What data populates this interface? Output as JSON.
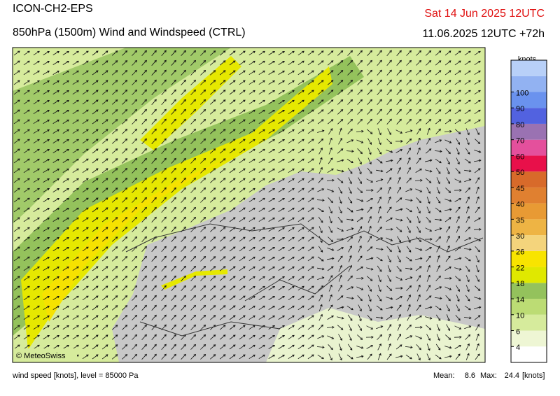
{
  "header": {
    "model": "ICON-CH2-EPS",
    "title": "850hPa (1500m) Wind and Windspeed (CTRL)",
    "valid": "Sat 14 Jun 2025 12UTC",
    "run": "11.06.2025 12UTC +72h"
  },
  "colorbar": {
    "unit": "knots",
    "ticks": [
      4,
      6,
      10,
      14,
      18,
      22,
      26,
      30,
      35,
      40,
      45,
      50,
      60,
      70,
      80,
      90,
      100
    ],
    "colors": [
      "#ffffff",
      "#eef6d4",
      "#d6eb9c",
      "#bcdc74",
      "#94c25c",
      "#e0e800",
      "#f8e400",
      "#f4d47c",
      "#eeb444",
      "#e89a34",
      "#e08030",
      "#d86a2a",
      "#e8104a",
      "#e4509c",
      "#9a72b2",
      "#5262e0",
      "#6a92ee",
      "#92b2f2",
      "#b8d0f8"
    ]
  },
  "copyright": "© MeteoSwiss",
  "footer": {
    "caption": "wind speed [knots], level = 85000 Pa",
    "mean_label": "Mean:",
    "mean": 8.6,
    "max_label": "Max:",
    "max": 24.4,
    "unit": "[knots]"
  }
}
